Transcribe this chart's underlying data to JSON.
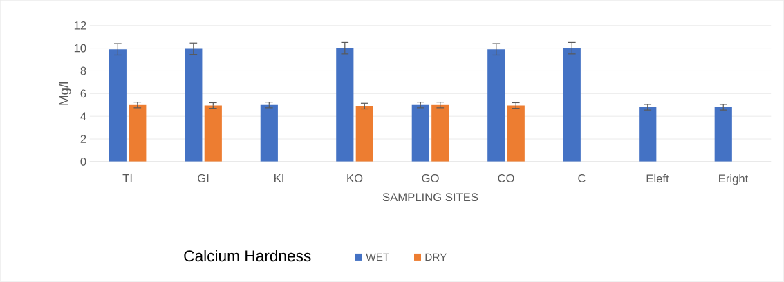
{
  "chart_data": {
    "type": "bar",
    "xlabel": "SAMPLING SITES",
    "ylabel": "Mg/l",
    "legend_title": "Calcium Hardness",
    "legend": "bottom",
    "grid": "y",
    "categories": [
      "TI",
      "GI",
      "KI",
      "KO",
      "GO",
      "CO",
      "C",
      "Eleft",
      "Eright"
    ],
    "ylim": [
      0,
      12
    ],
    "yticks": [
      0,
      2,
      4,
      6,
      8,
      10,
      12
    ],
    "series": [
      {
        "name": "WET",
        "color": "#4472c4",
        "values": [
          9.9,
          9.95,
          5.0,
          10.0,
          5.0,
          9.9,
          10.0,
          4.8,
          4.8
        ],
        "errors": [
          0.5,
          0.5,
          0.25,
          0.5,
          0.25,
          0.5,
          0.5,
          0.25,
          0.25
        ]
      },
      {
        "name": "DRY",
        "color": "#ed7d31",
        "values": [
          5.0,
          4.95,
          0,
          4.9,
          5.0,
          4.95,
          0,
          0,
          0
        ],
        "errors": [
          0.25,
          0.25,
          null,
          0.25,
          0.25,
          0.25,
          null,
          null,
          null
        ]
      }
    ]
  }
}
